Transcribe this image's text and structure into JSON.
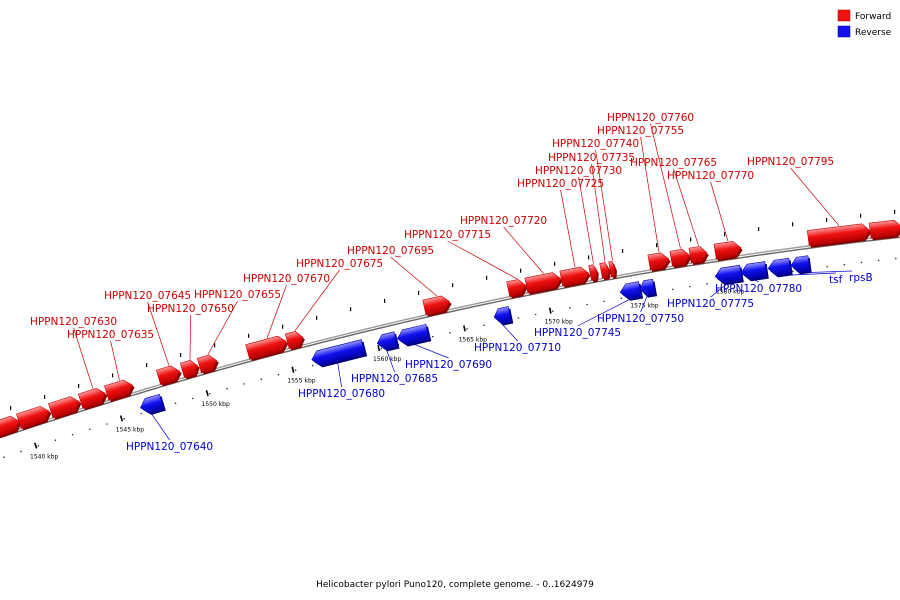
{
  "legend": [
    {
      "label": "Forward",
      "color": "#ee1111"
    },
    {
      "label": "Reverse",
      "color": "#1111ee"
    }
  ],
  "caption": "Helicobacter pylori Puno120, complete genome. - 0..1624979",
  "colors": {
    "forward": "#ee1111",
    "reverse": "#1111ee",
    "forward_label": "#cc0000",
    "reverse_label": "#0000cc",
    "backbone": "#888888"
  },
  "axis": {
    "unit": "kbp"
  },
  "scale_ticks": [
    {
      "value": 1540,
      "label": "1540 kbp"
    },
    {
      "value": 1545,
      "label": "1545 kbp"
    },
    {
      "value": 1550,
      "label": "1550 kbp"
    },
    {
      "value": 1555,
      "label": "1555 kbp"
    },
    {
      "value": 1560,
      "label": "1560 kbp"
    },
    {
      "value": 1565,
      "label": "1565 kbp"
    },
    {
      "value": 1570,
      "label": "1570 kbp"
    },
    {
      "value": 1575,
      "label": "1575 kbp"
    },
    {
      "value": 1580,
      "label": "1580 kbp"
    }
  ],
  "genes": [
    {
      "id": "g1",
      "strand": "forward"
    },
    {
      "id": "g2",
      "strand": "forward"
    },
    {
      "id": "g3",
      "strand": "forward"
    },
    {
      "id": "g4",
      "strand": "forward",
      "label": "HPPN120_07630"
    },
    {
      "id": "g5",
      "strand": "forward",
      "label": "HPPN120_07635"
    },
    {
      "id": "g6",
      "strand": "reverse",
      "label": "HPPN120_07640"
    },
    {
      "id": "g7",
      "strand": "forward",
      "label": "HPPN120_07645"
    },
    {
      "id": "g8",
      "strand": "forward",
      "label": "HPPN120_07650"
    },
    {
      "id": "g9",
      "strand": "forward",
      "label": "HPPN120_07655"
    },
    {
      "id": "g10",
      "strand": "forward",
      "label": "HPPN120_07670"
    },
    {
      "id": "g11",
      "strand": "forward",
      "label": "HPPN120_07675"
    },
    {
      "id": "g12",
      "strand": "reverse",
      "label": "HPPN120_07680"
    },
    {
      "id": "g13",
      "strand": "reverse",
      "label": "HPPN120_07685"
    },
    {
      "id": "g14",
      "strand": "reverse",
      "label": "HPPN120_07690"
    },
    {
      "id": "g15",
      "strand": "forward",
      "label": "HPPN120_07695"
    },
    {
      "id": "g16",
      "strand": "reverse",
      "label": "HPPN120_07710"
    },
    {
      "id": "g17",
      "strand": "forward",
      "label": "HPPN120_07715"
    },
    {
      "id": "g18",
      "strand": "forward",
      "label": "HPPN120_07720"
    },
    {
      "id": "g19",
      "strand": "forward",
      "label": "HPPN120_07725"
    },
    {
      "id": "g20",
      "strand": "forward",
      "label": "HPPN120_07730"
    },
    {
      "id": "g21",
      "strand": "forward",
      "label": "HPPN120_07735"
    },
    {
      "id": "g22",
      "strand": "forward",
      "label": "HPPN120_07740"
    },
    {
      "id": "g23",
      "strand": "reverse",
      "label": "HPPN120_07745"
    },
    {
      "id": "g24",
      "strand": "reverse",
      "label": "HPPN120_07750"
    },
    {
      "id": "g25",
      "strand": "forward",
      "label": "HPPN120_07755"
    },
    {
      "id": "g26",
      "strand": "forward",
      "label": "HPPN120_07760"
    },
    {
      "id": "g27",
      "strand": "forward",
      "label": "HPPN120_07765"
    },
    {
      "id": "g28",
      "strand": "forward",
      "label": "HPPN120_07770"
    },
    {
      "id": "g29",
      "strand": "reverse",
      "label": "HPPN120_07775"
    },
    {
      "id": "g30",
      "strand": "reverse",
      "label": "HPPN120_07780"
    },
    {
      "id": "g31",
      "strand": "reverse",
      "label": "tsf"
    },
    {
      "id": "g32",
      "strand": "reverse",
      "label": "rpsB"
    },
    {
      "id": "g33",
      "strand": "forward",
      "label": "HPPN120_07795"
    },
    {
      "id": "g34",
      "strand": "forward"
    }
  ]
}
